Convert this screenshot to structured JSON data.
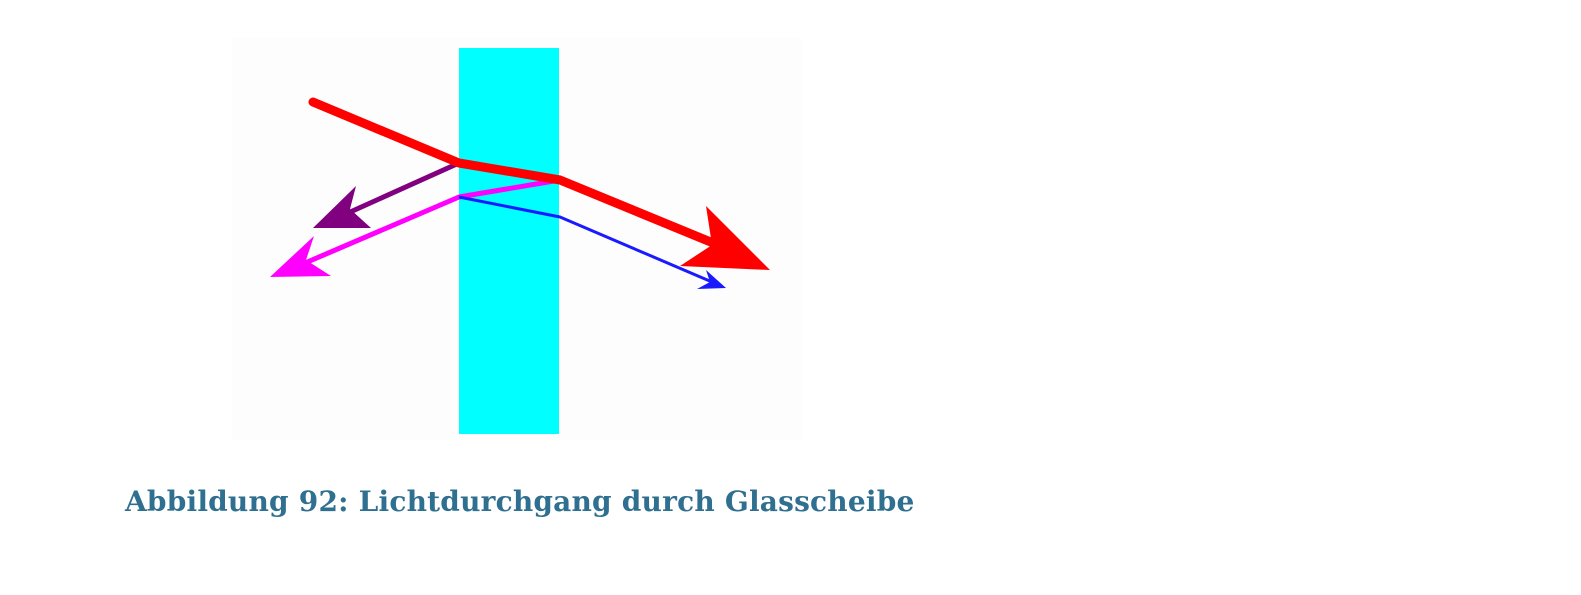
{
  "figure": {
    "caption": "Abbildung 92: Lichtdurchgang durch Glasscheibe",
    "colors": {
      "glass": "#00ffff",
      "incident_ray": "#ff0000",
      "reflected_front": "#800080",
      "reflected_back": "#ff00ff",
      "transmitted_inner": "#1a1aff",
      "caption": "#2f6f8f"
    },
    "elements": [
      "glass-pane",
      "incident-ray",
      "reflected-ray-front",
      "reflected-ray-back",
      "transmitted-ray",
      "secondary-transmitted-ray"
    ]
  }
}
